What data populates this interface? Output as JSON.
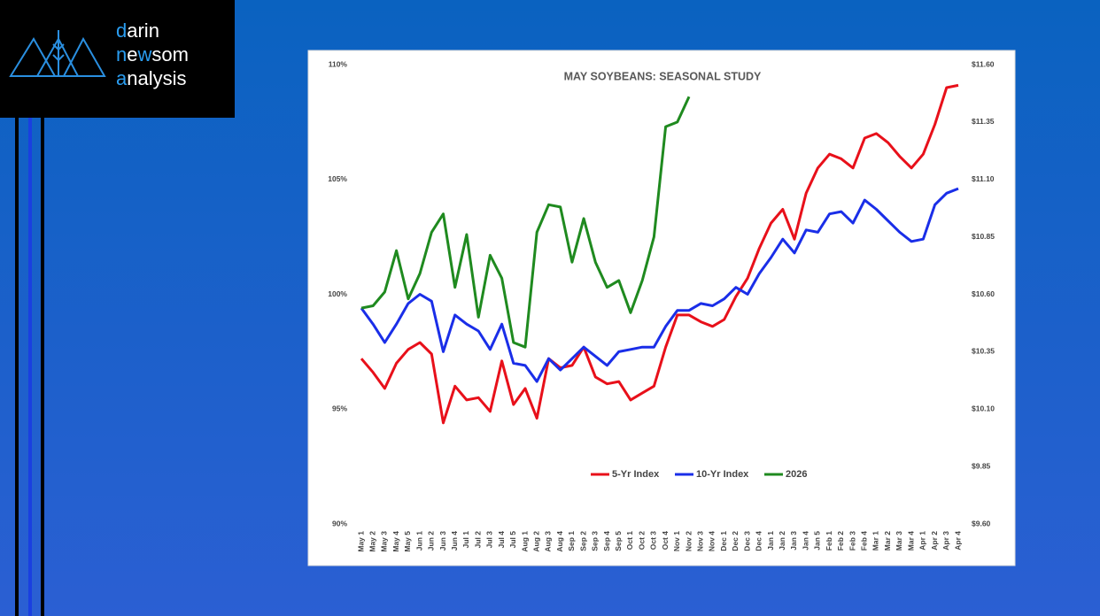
{
  "logo": {
    "lines": [
      [
        {
          "t": "d",
          "accent": true
        },
        {
          "t": "arin"
        }
      ],
      [
        {
          "t": "n",
          "accent": true
        },
        {
          "t": "e"
        },
        {
          "t": "w",
          "accent": true
        },
        {
          "t": "som"
        }
      ],
      [
        {
          "t": "a",
          "accent": true
        },
        {
          "t": "nalysis"
        }
      ]
    ]
  },
  "chart_data": {
    "type": "line",
    "title": "MAY SOYBEANS: SEASONAL STUDY",
    "categories": [
      "May 1",
      "May 2",
      "May 3",
      "May 4",
      "May 5",
      "Jun 1",
      "Jun 2",
      "Jun 3",
      "Jun 4",
      "Jul 1",
      "Jul 2",
      "Jul 3",
      "Jul 4",
      "Jul 5",
      "Aug 1",
      "Aug 2",
      "Aug 3",
      "Aug 4",
      "Sep 1",
      "Sep 2",
      "Sep 3",
      "Sep 4",
      "Sep 5",
      "Oct 1",
      "Oct 2",
      "Oct 3",
      "Oct 4",
      "Nov 1",
      "Nov 2",
      "Nov 3",
      "Nov 4",
      "Dec 1",
      "Dec 2",
      "Dec 3",
      "Dec 4",
      "Jan 1",
      "Jan 2",
      "Jan 3",
      "Jan 4",
      "Jan 5",
      "Feb 1",
      "Feb 2",
      "Feb 3",
      "Feb 4",
      "Mar 1",
      "Mar 2",
      "Mar 3",
      "Mar 4",
      "Apr 1",
      "Apr 2",
      "Apr 3",
      "Apr 4"
    ],
    "series": [
      {
        "name": "5-Yr Index",
        "color": "#e8101a",
        "values": [
          97.2,
          96.6,
          95.9,
          97.0,
          97.6,
          97.9,
          97.4,
          94.4,
          96.0,
          95.4,
          95.5,
          94.9,
          97.1,
          95.2,
          95.9,
          94.6,
          97.2,
          96.8,
          96.9,
          97.7,
          96.4,
          96.1,
          96.2,
          95.4,
          95.7,
          96.0,
          97.7,
          99.1,
          99.1,
          98.8,
          98.6,
          98.9,
          99.9,
          100.7,
          102.0,
          103.1,
          103.7,
          102.4,
          104.4,
          105.5,
          106.1,
          105.9,
          105.5,
          106.8,
          107.0,
          106.6,
          106.0,
          105.5,
          106.1,
          107.4,
          109.0,
          109.1
        ]
      },
      {
        "name": "10-Yr Index",
        "color": "#1a2ee8",
        "values": [
          99.4,
          98.7,
          97.9,
          98.7,
          99.6,
          100.0,
          99.7,
          97.5,
          99.1,
          98.7,
          98.4,
          97.6,
          98.7,
          97.0,
          96.9,
          96.2,
          97.2,
          96.7,
          97.2,
          97.7,
          97.3,
          96.9,
          97.5,
          97.6,
          97.7,
          97.7,
          98.6,
          99.3,
          99.3,
          99.6,
          99.5,
          99.8,
          100.3,
          100.0,
          100.9,
          101.6,
          102.4,
          101.8,
          102.8,
          102.7,
          103.5,
          103.6,
          103.1,
          104.1,
          103.7,
          103.2,
          102.7,
          102.3,
          102.4,
          103.9,
          104.4,
          104.6
        ]
      },
      {
        "name": "2026",
        "color": "#1f8a1f",
        "values": [
          99.4,
          99.5,
          100.1,
          101.9,
          99.8,
          100.9,
          102.7,
          103.5,
          100.3,
          102.6,
          99.0,
          101.7,
          100.7,
          97.9,
          97.7,
          102.7,
          103.9,
          103.8,
          101.4,
          103.3,
          101.4,
          100.3,
          100.6,
          99.2,
          100.6,
          102.5,
          107.3,
          107.5,
          108.6,
          null,
          null,
          null,
          null,
          null,
          null,
          null,
          null,
          null,
          null,
          null,
          null,
          null,
          null,
          null,
          null,
          null,
          null,
          null,
          null,
          null,
          null,
          null
        ]
      }
    ],
    "ylim": [
      90,
      110
    ],
    "yticks": [
      {
        "value": 90,
        "label": "90%"
      },
      {
        "value": 95,
        "label": "95%"
      },
      {
        "value": 100,
        "label": "100%"
      },
      {
        "value": 105,
        "label": "105%"
      },
      {
        "value": 110,
        "label": "110%"
      }
    ],
    "y2lim": [
      9.6,
      11.6
    ],
    "y2ticks": [
      {
        "value": 9.6,
        "label": "$9.60"
      },
      {
        "value": 9.85,
        "label": "$9.85"
      },
      {
        "value": 10.1,
        "label": "$10.10"
      },
      {
        "value": 10.35,
        "label": "$10.35"
      },
      {
        "value": 10.6,
        "label": "$10.60"
      },
      {
        "value": 10.85,
        "label": "$10.85"
      },
      {
        "value": 11.1,
        "label": "$11.10"
      },
      {
        "value": 11.35,
        "label": "$11.35"
      },
      {
        "value": 11.6,
        "label": "$11.60"
      }
    ],
    "grid": false
  }
}
